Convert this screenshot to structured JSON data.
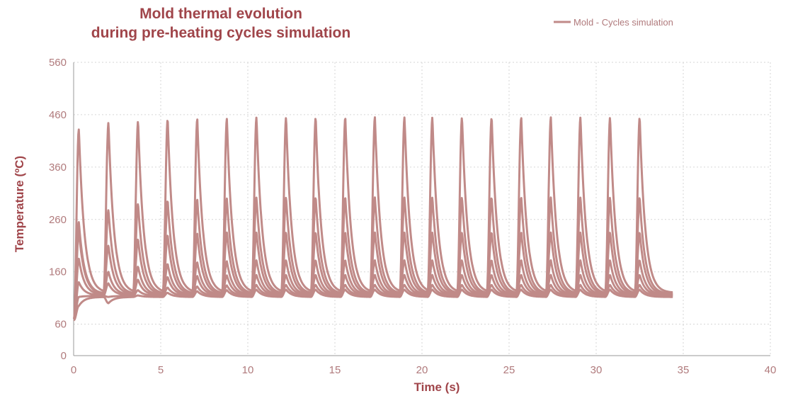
{
  "chart_data": {
    "type": "line",
    "title": [
      "Mold thermal evolution",
      "during pre-heating cycles simulation"
    ],
    "xlabel": "Time (s)",
    "ylabel": "Temperature (ºC)",
    "xlim": [
      0,
      40
    ],
    "ylim": [
      0,
      560
    ],
    "xticks": [
      "0",
      "5",
      "10",
      "15",
      "20",
      "25",
      "30",
      "35",
      "40"
    ],
    "yticks": [
      "0",
      "60",
      "160",
      "260",
      "360",
      "460",
      "560"
    ],
    "grid": true,
    "legend": {
      "position": "top-right",
      "entries": [
        "Mold - Cycles simulation"
      ]
    },
    "color": "#c08a88",
    "cycles": {
      "count": 20,
      "start_time": 0.0,
      "end_time": 34.4,
      "peak_times": [
        0.3,
        2.0,
        3.7,
        5.4,
        7.1,
        8.8,
        10.5,
        12.2,
        13.9,
        15.6,
        17.3,
        19.0,
        20.6,
        22.3,
        24.0,
        25.7,
        27.4,
        29.1,
        30.8,
        32.5
      ]
    },
    "series": [
      {
        "start_value": 70,
        "trough_value": 120,
        "peaks": [
          432,
          445,
          448,
          452,
          452,
          452,
          455,
          455,
          455,
          455,
          455,
          455,
          455,
          455,
          455,
          455,
          455,
          455,
          455,
          455
        ]
      },
      {
        "start_value": 70,
        "trough_value": 118,
        "peaks": [
          255,
          278,
          290,
          296,
          298,
          300,
          302,
          302,
          302,
          302,
          302,
          302,
          302,
          302,
          302,
          302,
          302,
          302,
          302,
          302
        ]
      },
      {
        "start_value": 70,
        "trough_value": 117,
        "peaks": [
          238,
          210,
          222,
          230,
          233,
          235,
          235,
          235,
          235,
          235,
          235,
          235,
          235,
          235,
          235,
          235,
          235,
          235,
          235,
          235
        ]
      },
      {
        "start_value": 70,
        "trough_value": 116,
        "peaks": [
          185,
          160,
          170,
          175,
          178,
          180,
          182,
          182,
          182,
          182,
          182,
          182,
          182,
          182,
          182,
          182,
          182,
          182,
          182,
          182
        ]
      },
      {
        "start_value": 70,
        "trough_value": 115,
        "peaks": [
          140,
          138,
          145,
          150,
          152,
          153,
          154,
          154,
          154,
          154,
          154,
          154,
          154,
          154,
          154,
          154,
          154,
          154,
          154,
          154
        ]
      },
      {
        "start_value": 70,
        "trough_value": 114,
        "peaks": [
          112,
          112,
          125,
          130,
          132,
          134,
          135,
          135,
          135,
          135,
          135,
          135,
          135,
          135,
          135,
          135,
          135,
          135,
          135,
          135
        ]
      },
      {
        "start_value": 68,
        "trough_value": 112,
        "peaks": [
          95,
          100,
          115,
          120,
          123,
          125,
          126,
          126,
          126,
          126,
          126,
          126,
          126,
          126,
          126,
          126,
          126,
          126,
          126,
          126
        ]
      }
    ]
  }
}
